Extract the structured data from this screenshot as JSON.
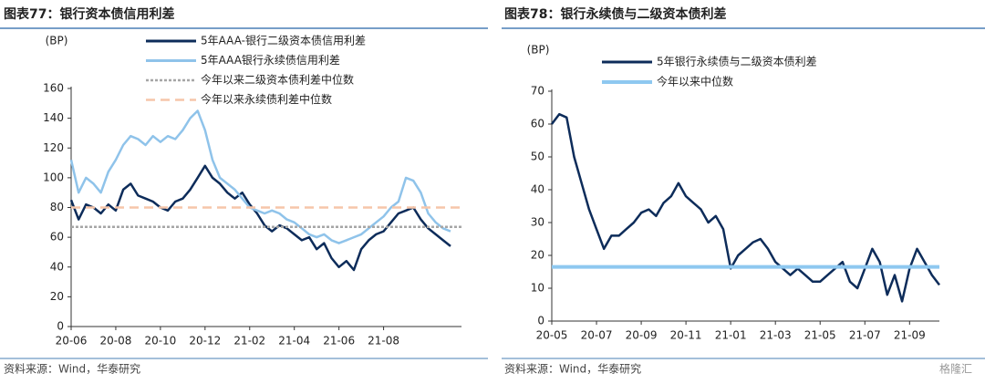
{
  "chart_data": [
    {
      "type": "line",
      "title": "图表77：银行资本债信用利差",
      "unit": "(BP)",
      "source": "资料来源：Wind，华泰研究",
      "categories": [
        "20-06",
        null,
        null,
        null,
        null,
        null,
        "20-08",
        null,
        null,
        null,
        null,
        null,
        "20-10",
        null,
        null,
        null,
        null,
        null,
        "20-12",
        null,
        null,
        null,
        null,
        null,
        "21-02",
        null,
        null,
        null,
        null,
        null,
        "21-04",
        null,
        null,
        null,
        null,
        null,
        "21-06",
        null,
        null,
        null,
        null,
        null,
        "21-08",
        null,
        null,
        null,
        null,
        null,
        null,
        null,
        null,
        null
      ],
      "series": [
        {
          "name": "5年AAA-银行二级资本债信用利差",
          "color": "#0d2c5a",
          "values": [
            85,
            72,
            82,
            80,
            76,
            82,
            78,
            92,
            96,
            88,
            86,
            84,
            80,
            78,
            84,
            86,
            92,
            100,
            108,
            100,
            96,
            90,
            86,
            90,
            82,
            76,
            68,
            64,
            68,
            66,
            62,
            58,
            60,
            52,
            56,
            46,
            40,
            44,
            38,
            52,
            58,
            62,
            64,
            70,
            76,
            78,
            80,
            72,
            66,
            62,
            58,
            54
          ]
        },
        {
          "name": "5年AAA银行永续债信用利差",
          "color": "#8fc3ea",
          "values": [
            112,
            90,
            100,
            96,
            90,
            104,
            112,
            122,
            128,
            126,
            122,
            128,
            124,
            128,
            126,
            132,
            140,
            145,
            132,
            112,
            100,
            96,
            92,
            86,
            80,
            78,
            76,
            78,
            76,
            72,
            70,
            66,
            62,
            60,
            62,
            58,
            56,
            58,
            60,
            62,
            66,
            70,
            74,
            80,
            84,
            100,
            98,
            90,
            76,
            70,
            66,
            64
          ]
        }
      ],
      "reference_lines": [
        {
          "name": "今年以来二级资本债利差中位数",
          "color": "#a6a6a6",
          "style": "dotted",
          "value": 67
        },
        {
          "name": "今年以来永续债利差中位数",
          "color": "#f6c6aa",
          "style": "dashed",
          "value": 80
        }
      ],
      "ylim": [
        0,
        160
      ],
      "yticks": [
        0,
        20,
        40,
        60,
        80,
        100,
        120,
        140,
        160
      ]
    },
    {
      "type": "line",
      "title": "图表78：银行永续债与二级资本债利差",
      "unit": "(BP)",
      "source": "资料来源：Wind，华泰研究",
      "categories": [
        "20-05",
        null,
        null,
        null,
        null,
        null,
        "20-07",
        null,
        null,
        null,
        null,
        null,
        "20-09",
        null,
        null,
        null,
        null,
        null,
        "20-11",
        null,
        null,
        null,
        null,
        null,
        "21-01",
        null,
        null,
        null,
        null,
        null,
        "21-03",
        null,
        null,
        null,
        null,
        null,
        "21-05",
        null,
        null,
        null,
        null,
        null,
        "21-07",
        null,
        null,
        null,
        null,
        null,
        "21-09",
        null,
        null,
        null,
        null
      ],
      "series": [
        {
          "name": "5年银行永续债与二级资本债利差",
          "color": "#0d2c5a",
          "values": [
            60,
            63,
            62,
            50,
            42,
            34,
            28,
            22,
            26,
            26,
            28,
            30,
            33,
            34,
            32,
            36,
            38,
            42,
            38,
            36,
            34,
            30,
            32,
            28,
            16,
            20,
            22,
            24,
            25,
            22,
            18,
            16,
            14,
            16,
            14,
            12,
            12,
            14,
            16,
            18,
            12,
            10,
            16,
            22,
            18,
            8,
            14,
            6,
            16,
            22,
            18,
            14,
            11
          ]
        }
      ],
      "reference_lines": [
        {
          "name": "今年以来中位数",
          "color": "#8ec8f0",
          "style": "solid",
          "value": 16.5
        }
      ],
      "ylim": [
        0,
        70
      ],
      "yticks": [
        0,
        10,
        20,
        30,
        40,
        50,
        60,
        70
      ]
    }
  ],
  "watermark": "格隆汇"
}
